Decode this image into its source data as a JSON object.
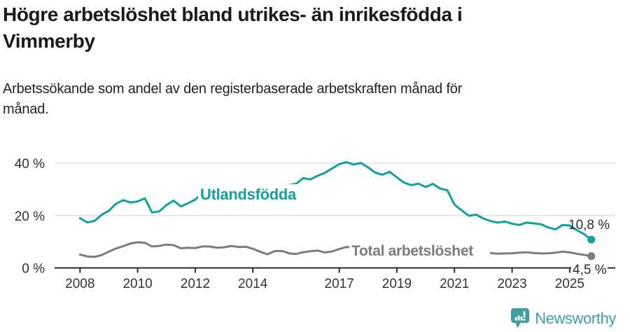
{
  "header": {
    "title": "Högre arbetslöshet bland utrikes- än inrikesfödda i\nVimmerby",
    "subtitle": "Arbetssökande som andel av den registerbaserade arbetskraften månad för\nmånad."
  },
  "branding": {
    "logo_text": "Newsworthy",
    "logo_icon": "bar-chart-speech-bubble-icon",
    "brand_color": "#3da09a"
  },
  "colors": {
    "foreign_born_line": "#11a198",
    "total_line": "#7b7b80",
    "axis": "#2d2d2d",
    "gridline": "#e0e0e0",
    "tick_text": "#333333",
    "value_label_text": "#2d2d2d"
  },
  "chart_data": {
    "type": "line",
    "title": "Högre arbetslöshet bland utrikes- än inrikesfödda i Vimmerby",
    "subtitle": "Arbetssökande som andel av den registerbaserade arbetskraften månad för månad.",
    "xlabel": "",
    "ylabel": "",
    "xlim": [
      2007.1,
      2026.6
    ],
    "ylim": [
      0,
      44
    ],
    "grid": "horizontal-only",
    "legend_position": "inline-labels",
    "x_ticks": [
      2008,
      2010,
      2012,
      2014,
      2017,
      2019,
      2021,
      2023,
      2025
    ],
    "x_tick_labels": [
      "2008",
      "2010",
      "2012",
      "2014",
      "2017",
      "2019",
      "2021",
      "2023",
      "2025"
    ],
    "y_ticks": [
      0,
      20,
      40
    ],
    "y_tick_labels": [
      "0 %",
      "20 %",
      "40 %"
    ],
    "series": [
      {
        "name": "Utlandsfödda",
        "color": "#11a198",
        "end_label": "10,8 %",
        "end_value": 10.8,
        "points": [
          [
            2008.0,
            19.0
          ],
          [
            2008.25,
            17.4
          ],
          [
            2008.5,
            17.9
          ],
          [
            2008.75,
            20.3
          ],
          [
            2009.0,
            21.8
          ],
          [
            2009.25,
            24.5
          ],
          [
            2009.5,
            25.9
          ],
          [
            2009.75,
            25.0
          ],
          [
            2010.0,
            25.4
          ],
          [
            2010.25,
            26.6
          ],
          [
            2010.5,
            21.2
          ],
          [
            2010.75,
            21.6
          ],
          [
            2011.0,
            24.0
          ],
          [
            2011.25,
            25.7
          ],
          [
            2011.5,
            23.5
          ],
          [
            2011.75,
            24.7
          ],
          [
            2012.0,
            26.1
          ],
          [
            2012.25,
            28.6
          ],
          [
            2012.5,
            27.2
          ],
          [
            2012.75,
            28.2
          ],
          [
            2013.0,
            29.6
          ],
          [
            2013.25,
            30.3
          ],
          [
            2013.5,
            29.6
          ],
          [
            2013.75,
            30.1
          ],
          [
            2014.0,
            30.6
          ],
          [
            2014.25,
            30.0
          ],
          [
            2014.5,
            30.7
          ],
          [
            2014.75,
            31.1
          ],
          [
            2015.0,
            30.9
          ],
          [
            2015.25,
            31.6
          ],
          [
            2015.5,
            32.1
          ],
          [
            2015.75,
            34.3
          ],
          [
            2016.0,
            33.8
          ],
          [
            2016.25,
            35.2
          ],
          [
            2016.5,
            36.3
          ],
          [
            2016.75,
            38.0
          ],
          [
            2017.0,
            39.6
          ],
          [
            2017.25,
            40.4
          ],
          [
            2017.5,
            39.5
          ],
          [
            2017.75,
            40.1
          ],
          [
            2018.0,
            38.4
          ],
          [
            2018.25,
            36.4
          ],
          [
            2018.5,
            35.6
          ],
          [
            2018.75,
            36.7
          ],
          [
            2019.0,
            34.6
          ],
          [
            2019.25,
            32.6
          ],
          [
            2019.5,
            31.6
          ],
          [
            2019.75,
            32.2
          ],
          [
            2020.0,
            30.9
          ],
          [
            2020.25,
            32.1
          ],
          [
            2020.5,
            30.3
          ],
          [
            2020.75,
            29.7
          ],
          [
            2021.0,
            24.2
          ],
          [
            2021.25,
            22.0
          ],
          [
            2021.5,
            19.9
          ],
          [
            2021.75,
            20.4
          ],
          [
            2022.0,
            18.9
          ],
          [
            2022.25,
            17.9
          ],
          [
            2022.5,
            17.3
          ],
          [
            2022.75,
            17.7
          ],
          [
            2023.0,
            16.9
          ],
          [
            2023.25,
            16.4
          ],
          [
            2023.5,
            17.3
          ],
          [
            2023.75,
            17.0
          ],
          [
            2024.0,
            16.7
          ],
          [
            2024.25,
            15.5
          ],
          [
            2024.5,
            14.7
          ],
          [
            2024.75,
            16.4
          ],
          [
            2025.0,
            16.2
          ],
          [
            2025.25,
            14.4
          ],
          [
            2025.5,
            12.9
          ],
          [
            2025.75,
            10.8
          ]
        ]
      },
      {
        "name": "Total arbetslöshet",
        "color": "#7b7b80",
        "end_label": "4,5 %",
        "end_value": 4.5,
        "points": [
          [
            2008.0,
            5.1
          ],
          [
            2008.25,
            4.4
          ],
          [
            2008.5,
            4.2
          ],
          [
            2008.75,
            4.9
          ],
          [
            2009.0,
            6.2
          ],
          [
            2009.25,
            7.4
          ],
          [
            2009.5,
            8.3
          ],
          [
            2009.75,
            9.3
          ],
          [
            2010.0,
            9.8
          ],
          [
            2010.25,
            9.6
          ],
          [
            2010.5,
            8.2
          ],
          [
            2010.75,
            8.4
          ],
          [
            2011.0,
            8.9
          ],
          [
            2011.25,
            8.7
          ],
          [
            2011.5,
            7.5
          ],
          [
            2011.75,
            7.7
          ],
          [
            2012.0,
            7.6
          ],
          [
            2012.25,
            8.2
          ],
          [
            2012.5,
            8.2
          ],
          [
            2012.75,
            7.7
          ],
          [
            2013.0,
            7.9
          ],
          [
            2013.25,
            8.4
          ],
          [
            2013.5,
            8.0
          ],
          [
            2013.75,
            8.1
          ],
          [
            2014.0,
            7.3
          ],
          [
            2014.25,
            6.2
          ],
          [
            2014.5,
            5.2
          ],
          [
            2014.75,
            6.4
          ],
          [
            2015.0,
            6.5
          ],
          [
            2015.25,
            5.6
          ],
          [
            2015.5,
            5.3
          ],
          [
            2015.75,
            6.0
          ],
          [
            2016.0,
            6.4
          ],
          [
            2016.25,
            6.6
          ],
          [
            2016.5,
            5.9
          ],
          [
            2016.75,
            6.3
          ],
          [
            2017.0,
            7.2
          ],
          [
            2017.25,
            8.0
          ],
          [
            2017.5,
            7.8
          ],
          [
            2017.75,
            7.5
          ],
          [
            2018.0,
            7.3
          ],
          [
            2018.25,
            7.4
          ],
          [
            2018.5,
            7.2
          ],
          [
            2018.75,
            7.0
          ],
          [
            2019.0,
            6.8
          ],
          [
            2019.25,
            6.9
          ],
          [
            2019.5,
            6.7
          ],
          [
            2019.75,
            6.8
          ],
          [
            2020.0,
            7.0
          ],
          [
            2020.25,
            7.6
          ],
          [
            2020.5,
            7.4
          ],
          [
            2020.75,
            7.0
          ],
          [
            2021.0,
            6.8
          ],
          [
            2021.25,
            6.5
          ],
          [
            2021.5,
            6.2
          ],
          [
            2021.75,
            6.0
          ],
          [
            2022.0,
            5.8
          ],
          [
            2022.25,
            5.7
          ],
          [
            2022.5,
            5.4
          ],
          [
            2022.75,
            5.5
          ],
          [
            2023.0,
            5.6
          ],
          [
            2023.25,
            5.8
          ],
          [
            2023.5,
            6.0
          ],
          [
            2023.75,
            5.7
          ],
          [
            2024.0,
            5.5
          ],
          [
            2024.25,
            5.6
          ],
          [
            2024.5,
            5.8
          ],
          [
            2024.75,
            6.2
          ],
          [
            2025.0,
            5.9
          ],
          [
            2025.25,
            5.4
          ],
          [
            2025.5,
            5.0
          ],
          [
            2025.75,
            4.5
          ]
        ]
      }
    ]
  }
}
